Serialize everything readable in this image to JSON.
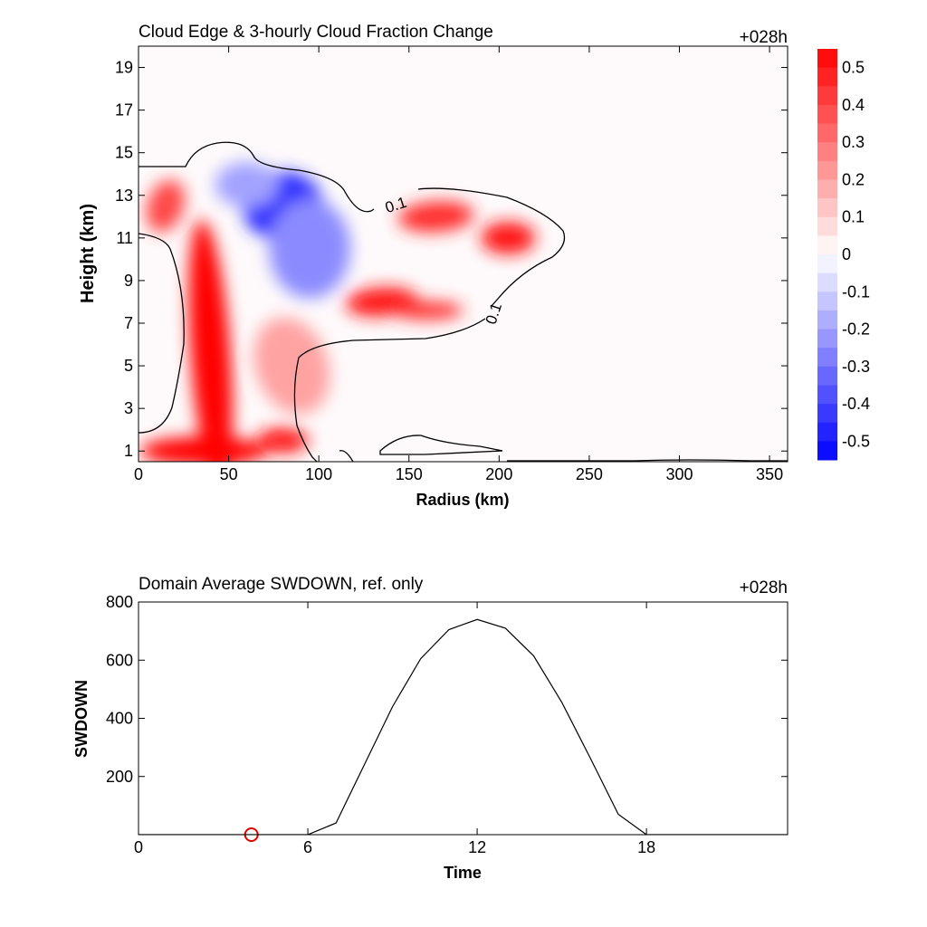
{
  "chart_data": [
    {
      "type": "heatmap",
      "title": "Cloud Edge & 3-hourly Cloud Fraction Change",
      "time_label": "+028h",
      "xlabel": "Radius (km)",
      "ylabel": "Height (km)",
      "xlim": [
        0,
        360
      ],
      "ylim": [
        0.5,
        20
      ],
      "xticks": [
        "0",
        "50",
        "100",
        "150",
        "200",
        "250",
        "300",
        "350"
      ],
      "yticks": [
        "1",
        "3",
        "5",
        "7",
        "9",
        "11",
        "13",
        "15",
        "17",
        "19"
      ],
      "colorbar": {
        "range": [
          -0.55,
          0.55
        ],
        "labels": [
          "0.5",
          "0.4",
          "0.3",
          "0.2",
          "0.1",
          "0",
          "-0.1",
          "-0.2",
          "-0.3",
          "-0.4",
          "-0.5"
        ],
        "positive_color": "#ff0000",
        "negative_color": "#0000ff"
      },
      "contour_labels": [
        "0.1",
        "0.1"
      ],
      "features": [
        {
          "x": 40,
          "y": 5.5,
          "value": 0.55
        },
        {
          "x": 36,
          "y": 1.0,
          "value": 0.55
        },
        {
          "x": 15,
          "y": 12.5,
          "value": 0.4
        },
        {
          "x": 80,
          "y": 1.5,
          "value": 0.5
        },
        {
          "x": 135,
          "y": 8.0,
          "value": 0.5
        },
        {
          "x": 160,
          "y": 7.6,
          "value": 0.45
        },
        {
          "x": 165,
          "y": 12.0,
          "value": 0.45
        },
        {
          "x": 205,
          "y": 11.0,
          "value": 0.5
        },
        {
          "x": 85,
          "y": 5.0,
          "value": 0.2
        },
        {
          "x": 80,
          "y": 12.5,
          "value": -0.45
        },
        {
          "x": 95,
          "y": 10.5,
          "value": -0.25
        },
        {
          "x": 60,
          "y": 13.5,
          "value": -0.2
        }
      ]
    },
    {
      "type": "line",
      "title": "Domain Average SWDOWN, ref. only",
      "time_label": "+028h",
      "xlabel": "Time",
      "ylabel": "SWDOWN",
      "xlim": [
        0,
        23
      ],
      "ylim": [
        0,
        800
      ],
      "xticks": [
        "0",
        "6",
        "12",
        "18"
      ],
      "yticks": [
        "200",
        "400",
        "600",
        "800"
      ],
      "x": [
        0,
        1,
        2,
        3,
        4,
        5,
        6,
        7,
        8,
        9,
        10,
        11,
        12,
        13,
        14,
        15,
        16,
        17,
        18,
        19,
        20,
        21,
        22,
        23
      ],
      "values": [
        0,
        0,
        0,
        0,
        0,
        0,
        0,
        40,
        240,
        440,
        605,
        705,
        740,
        710,
        615,
        455,
        265,
        70,
        0,
        0,
        0,
        0,
        0,
        0
      ],
      "marker": {
        "x": 4,
        "y": 0,
        "color": "#dd0000"
      }
    }
  ]
}
